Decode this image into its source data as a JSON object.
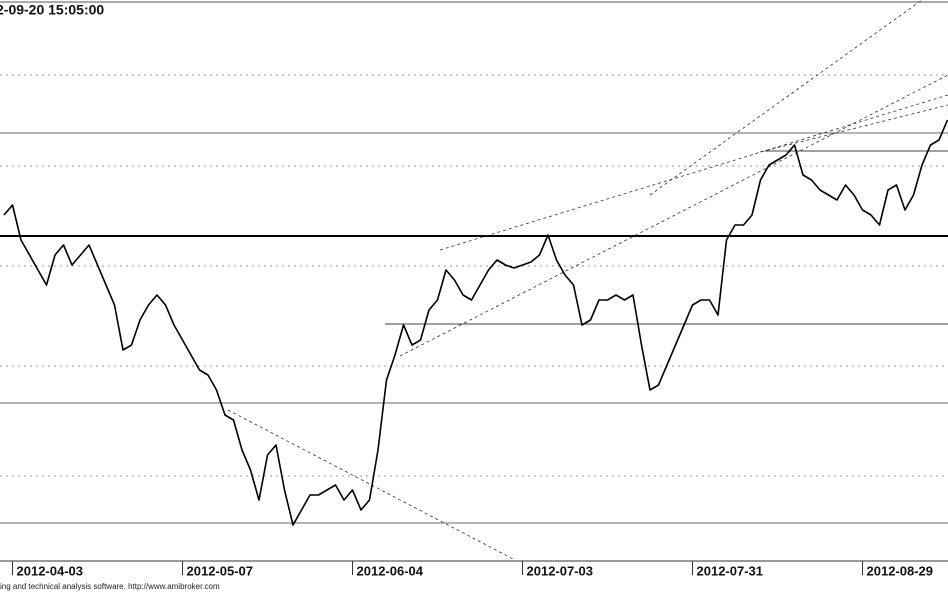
{
  "chart_data": {
    "type": "line",
    "title": "2-09-20 15:05:00",
    "footer": "ing and technical analysis software. http://www.amibroker.com",
    "categories": [
      null,
      "2012-04-03",
      null,
      null,
      null,
      null,
      null,
      null,
      null,
      null,
      null,
      null,
      null,
      null,
      null,
      null,
      null,
      null,
      null,
      null,
      null,
      "2012-05-07",
      null,
      null,
      null,
      null,
      null,
      null,
      null,
      null,
      null,
      null,
      null,
      null,
      null,
      null,
      null,
      null,
      null,
      null,
      null,
      "2012-06-04",
      null,
      null,
      null,
      null,
      null,
      null,
      null,
      null,
      null,
      null,
      null,
      null,
      null,
      null,
      null,
      null,
      null,
      null,
      null,
      "2012-07-03",
      null,
      null,
      null,
      null,
      null,
      null,
      null,
      null,
      null,
      null,
      null,
      null,
      null,
      null,
      null,
      null,
      null,
      null,
      null,
      "2012-07-31",
      null,
      null,
      null,
      null,
      null,
      null,
      null,
      null,
      null,
      null,
      null,
      null,
      null,
      null,
      null,
      null,
      null,
      null,
      null,
      "2012-08-29",
      null,
      null,
      null,
      null,
      null,
      null,
      null,
      null,
      null,
      null
    ],
    "values": [
      345,
      355,
      320,
      305,
      290,
      275,
      305,
      315,
      295,
      305,
      315,
      295,
      275,
      255,
      210,
      215,
      240,
      255,
      265,
      255,
      235,
      220,
      205,
      190,
      185,
      170,
      145,
      140,
      110,
      90,
      60,
      105,
      115,
      70,
      35,
      50,
      65,
      65,
      70,
      75,
      60,
      70,
      50,
      60,
      110,
      180,
      205,
      235,
      215,
      220,
      250,
      260,
      290,
      280,
      265,
      260,
      275,
      290,
      300,
      295,
      292,
      295,
      298,
      305,
      325,
      300,
      285,
      275,
      235,
      240,
      260,
      260,
      265,
      260,
      265,
      215,
      170,
      175,
      195,
      215,
      235,
      255,
      260,
      260,
      245,
      320,
      335,
      335,
      345,
      380,
      395,
      400,
      405,
      415,
      385,
      380,
      370,
      365,
      360,
      375,
      365,
      350,
      345,
      335,
      370,
      375,
      350,
      365,
      395,
      415,
      420,
      440
    ],
    "color": "#000000",
    "ylim": [
      0,
      560
    ]
  }
}
